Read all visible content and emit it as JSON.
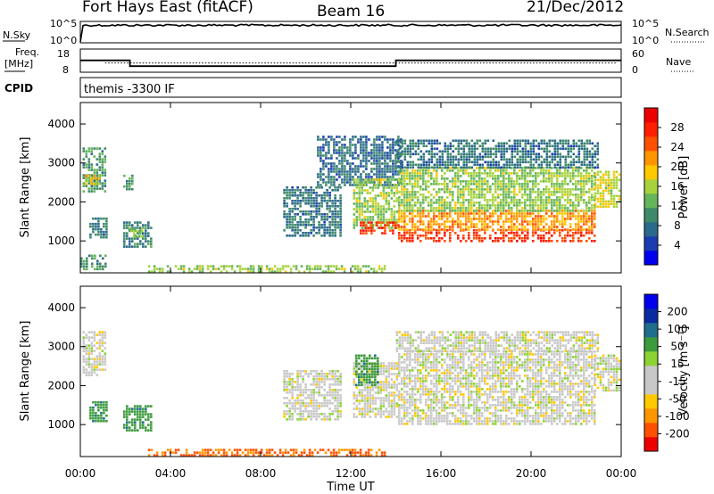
{
  "header": {
    "station": "Fort Hays East (fitACF)",
    "beam": "Beam 16",
    "date": "21/Dec/2012"
  },
  "noise_panel": {
    "left_label": "N.Sky",
    "right_label": "N.Search",
    "tick_top": "10^5",
    "tick_bottom": "10^0",
    "n_sky_level": 0.82
  },
  "freq_panel": {
    "left_label_line1": "Freq.",
    "left_label_line2": "[MHz]",
    "right_label": "Nave",
    "left_ticks": [
      "18",
      "8"
    ],
    "right_ticks": [
      "60",
      "0"
    ],
    "freq_segments": [
      {
        "start_h": 0.0,
        "end_h": 2.2,
        "mhz": 13.1
      },
      {
        "start_h": 2.2,
        "end_h": 14.0,
        "mhz": 10.6
      },
      {
        "start_h": 14.0,
        "end_h": 24.0,
        "mhz": 13.1
      }
    ],
    "nave_level": 24
  },
  "cpid": {
    "label": "CPID",
    "value": "themis -3300 IF"
  },
  "colors": {
    "power_scale": [
      "#0000ee",
      "#1a3cb0",
      "#2a6a8a",
      "#3f8a6a",
      "#64b45a",
      "#a8d23c",
      "#ffc800",
      "#ff9600",
      "#ff5000",
      "#ff1e00",
      "#ee0000"
    ],
    "velocity_scale": [
      "#ee0000",
      "#ff5000",
      "#ff9600",
      "#ffc800",
      "#c8c8c8",
      "#c8c8c8",
      "#8cd232",
      "#3c9b3c",
      "#1e6e8c",
      "#0a2aa0",
      "#0000ee"
    ]
  },
  "chart_data": [
    {
      "type": "heatmap",
      "name": "power",
      "ylabel": "Slant Range [km]",
      "xlabel": "Time UT",
      "x_ticks": [
        "00:00",
        "04:00",
        "08:00",
        "12:00",
        "16:00",
        "20:00",
        "00:00"
      ],
      "y_ticks": [
        "1000",
        "2000",
        "3000",
        "4000"
      ],
      "xlim_hours": [
        0,
        24
      ],
      "ylim_km": [
        180,
        4550
      ],
      "colorbar_label": "Power [dB]",
      "colorbar_ticks": [
        "4",
        "8",
        "12",
        "16",
        "20",
        "24",
        "28"
      ],
      "colorbar_range": [
        0,
        30
      ],
      "regions": [
        {
          "t0": 0.1,
          "t1": 1.1,
          "r0": 2300,
          "r1": 3400,
          "value": 10
        },
        {
          "t0": 0.2,
          "t1": 0.8,
          "r0": 2450,
          "r1": 2700,
          "value": 17
        },
        {
          "t0": 0.0,
          "t1": 1.1,
          "r0": 250,
          "r1": 650,
          "value": 9
        },
        {
          "t0": 0.4,
          "t1": 1.2,
          "r0": 1100,
          "r1": 1600,
          "value": 7
        },
        {
          "t0": 1.9,
          "t1": 2.3,
          "r0": 2300,
          "r1": 2700,
          "value": 10
        },
        {
          "t0": 1.9,
          "t1": 3.2,
          "r0": 850,
          "r1": 1500,
          "value": 8
        },
        {
          "t0": 2.1,
          "t1": 2.8,
          "r0": 1050,
          "r1": 1350,
          "value": 13
        },
        {
          "t0": 3.0,
          "t1": 13.5,
          "r0": 200,
          "r1": 380,
          "value": 14
        },
        {
          "t0": 9.0,
          "t1": 11.5,
          "r0": 1100,
          "r1": 2400,
          "value": 7
        },
        {
          "t0": 10.5,
          "t1": 14.2,
          "r0": 2400,
          "r1": 3700,
          "value": 6
        },
        {
          "t0": 12.1,
          "t1": 14.1,
          "r0": 1300,
          "r1": 2600,
          "value": 14
        },
        {
          "t0": 12.4,
          "t1": 14.1,
          "r0": 1200,
          "r1": 1500,
          "value": 26
        },
        {
          "t0": 14.1,
          "t1": 22.8,
          "r0": 1000,
          "r1": 1300,
          "value": 26
        },
        {
          "t0": 14.1,
          "t1": 22.8,
          "r0": 1300,
          "r1": 1800,
          "value": 21
        },
        {
          "t0": 14.1,
          "t1": 22.8,
          "r0": 1800,
          "r1": 2900,
          "value": 14
        },
        {
          "t0": 14.0,
          "t1": 23.0,
          "r0": 2900,
          "r1": 3600,
          "value": 7
        },
        {
          "t0": 22.8,
          "t1": 23.9,
          "r0": 1900,
          "r1": 2800,
          "value": 16
        }
      ]
    },
    {
      "type": "heatmap",
      "name": "velocity",
      "ylabel": "Slant Range [km]",
      "xlabel": "Time UT",
      "x_ticks": [
        "00:00",
        "04:00",
        "08:00",
        "12:00",
        "16:00",
        "20:00",
        "00:00"
      ],
      "y_ticks": [
        "1000",
        "2000",
        "3000",
        "4000"
      ],
      "xlim_hours": [
        0,
        24
      ],
      "ylim_km": [
        180,
        4550
      ],
      "colorbar_label": "Velocity [m s⁻¹]",
      "colorbar_ticks": [
        "-200",
        "-100",
        "-50",
        "-15",
        "15",
        "50",
        "100",
        "200"
      ],
      "regions": [
        {
          "t0": 0.1,
          "t1": 1.1,
          "r0": 2300,
          "r1": 3400,
          "value": 0
        },
        {
          "t0": 0.4,
          "t1": 1.2,
          "r0": 1100,
          "r1": 1600,
          "value": 60
        },
        {
          "t0": 1.9,
          "t1": 3.2,
          "r0": 850,
          "r1": 1500,
          "value": 60
        },
        {
          "t0": 3.0,
          "t1": 13.5,
          "r0": 200,
          "r1": 380,
          "value": -80
        },
        {
          "t0": 9.0,
          "t1": 11.5,
          "r0": 1100,
          "r1": 2400,
          "value": 0
        },
        {
          "t0": 12.1,
          "t1": 14.1,
          "r0": 1200,
          "r1": 2600,
          "value": 0
        },
        {
          "t0": 12.2,
          "t1": 13.2,
          "r0": 2000,
          "r1": 2800,
          "value": 60
        },
        {
          "t0": 14.1,
          "t1": 22.8,
          "r0": 1000,
          "r1": 2900,
          "value": 0
        },
        {
          "t0": 14.0,
          "t1": 23.0,
          "r0": 2900,
          "r1": 3400,
          "value": 0
        },
        {
          "t0": 22.8,
          "t1": 23.9,
          "r0": 1900,
          "r1": 2800,
          "value": 0
        }
      ]
    }
  ]
}
